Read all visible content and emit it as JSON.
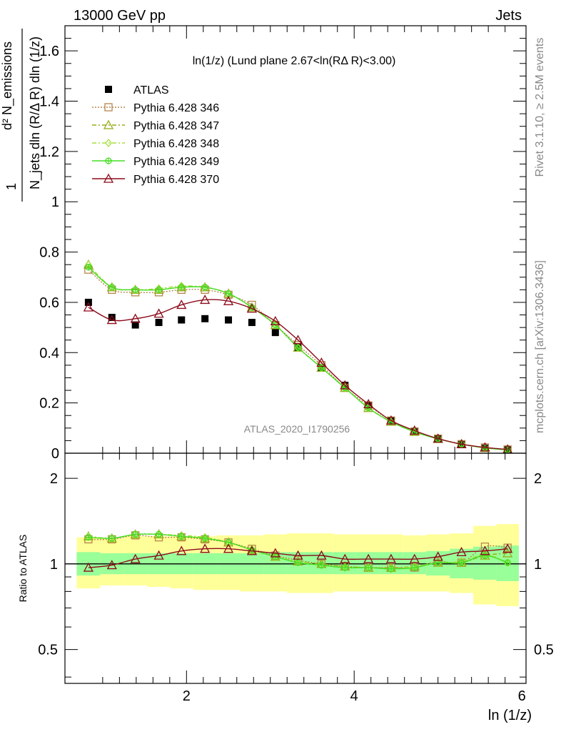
{
  "header": {
    "left": "13000 GeV pp",
    "right": "Jets"
  },
  "side": {
    "rivet": "Rivet 3.1.10, ≥ 2.5M events",
    "mcplots": "mcplots.cern.ch [arXiv:1306.3436]"
  },
  "chart_data": [
    {
      "type": "scatter",
      "title": "ln(1/z) (Lund plane 2.67<ln(RΔ R)<3.00)",
      "ylabel_lines": [
        "1",
        "N_jets dln (R/Δ R) dln (1/z)",
        "d² N_emissions"
      ],
      "xlabel": "ln (1/z)",
      "watermark": "ATLAS_2020_I1790256",
      "xlim": [
        0.55,
        6.05
      ],
      "ylim": [
        0,
        1.7
      ],
      "yticks": [
        0,
        0.2,
        0.4,
        0.6,
        0.8,
        1,
        1.2,
        1.4,
        1.6
      ],
      "ytick_labels": [
        "0",
        "0.2",
        "0.4",
        "0.6",
        "0.8",
        "1",
        "1.2",
        "1.4",
        "1.6"
      ],
      "x": [
        0.83,
        1.11,
        1.39,
        1.67,
        1.94,
        2.22,
        2.5,
        2.78,
        3.06,
        3.33,
        3.61,
        3.89,
        4.17,
        4.44,
        4.72,
        5.0,
        5.28,
        5.56,
        5.83
      ],
      "legend_position": "top-left",
      "series": [
        {
          "name": "ATLAS",
          "color": "#000000",
          "marker": "square-filled",
          "line": "none",
          "values": [
            0.6,
            0.54,
            0.51,
            0.52,
            0.53,
            0.535,
            0.53,
            0.52,
            0.48,
            0.42,
            0.34,
            0.27,
            0.19,
            0.13,
            0.088,
            0.057,
            0.036,
            0.02,
            0.013
          ]
        },
        {
          "name": "Pythia 6.428 346",
          "color": "#b5874a",
          "marker": "square-open",
          "line": "dotted",
          "values": [
            0.73,
            0.65,
            0.64,
            0.64,
            0.65,
            0.65,
            0.63,
            0.59,
            0.51,
            0.43,
            0.35,
            0.26,
            0.19,
            0.13,
            0.086,
            0.058,
            0.036,
            0.023,
            0.015
          ]
        },
        {
          "name": "Pythia 6.428 347",
          "color": "#9aaa18",
          "marker": "triangle-open",
          "line": "dashdot",
          "values": [
            0.75,
            0.66,
            0.65,
            0.65,
            0.66,
            0.66,
            0.635,
            0.58,
            0.51,
            0.42,
            0.34,
            0.26,
            0.18,
            0.125,
            0.085,
            0.057,
            0.036,
            0.021,
            0.014
          ]
        },
        {
          "name": "Pythia 6.428 348",
          "color": "#a6e03c",
          "marker": "diamond-open",
          "line": "dashdot",
          "values": [
            0.75,
            0.66,
            0.65,
            0.655,
            0.665,
            0.66,
            0.635,
            0.58,
            0.51,
            0.42,
            0.34,
            0.26,
            0.18,
            0.125,
            0.085,
            0.057,
            0.036,
            0.022,
            0.013
          ]
        },
        {
          "name": "Pythia 6.428 349",
          "color": "#44dd22",
          "marker": "circle-cross",
          "line": "solid",
          "values": [
            0.74,
            0.66,
            0.65,
            0.65,
            0.66,
            0.66,
            0.635,
            0.58,
            0.51,
            0.42,
            0.34,
            0.26,
            0.18,
            0.125,
            0.085,
            0.057,
            0.036,
            0.021,
            0.013
          ]
        },
        {
          "name": "Pythia 6.428 370",
          "color": "#8b0a1a",
          "marker": "triangle-open",
          "line": "solid",
          "values": [
            0.58,
            0.53,
            0.535,
            0.555,
            0.59,
            0.61,
            0.605,
            0.575,
            0.525,
            0.45,
            0.36,
            0.27,
            0.195,
            0.13,
            0.09,
            0.058,
            0.036,
            0.023,
            0.015
          ]
        }
      ]
    },
    {
      "type": "line",
      "ylabel": "Ratio to ATLAS",
      "xlabel": "ln (1/z)",
      "xlim": [
        0.55,
        6.05
      ],
      "ylim": [
        0.38,
        2.45
      ],
      "yscale": "log",
      "yticks": [
        0.5,
        1,
        2
      ],
      "ytick_labels": [
        "0.5",
        "1",
        "2"
      ],
      "xticks": [
        2,
        4,
        6
      ],
      "xtick_labels": [
        "2",
        "4",
        "6"
      ],
      "x": [
        0.83,
        1.11,
        1.39,
        1.67,
        1.94,
        2.22,
        2.5,
        2.78,
        3.06,
        3.33,
        3.61,
        3.89,
        4.17,
        4.44,
        4.72,
        5.0,
        5.28,
        5.56,
        5.83
      ],
      "bands": [
        {
          "name": "ATLAS total uncertainty",
          "color": "#ffff99",
          "low": [
            0.82,
            0.84,
            0.84,
            0.83,
            0.82,
            0.81,
            0.81,
            0.8,
            0.8,
            0.79,
            0.79,
            0.8,
            0.8,
            0.8,
            0.8,
            0.8,
            0.79,
            0.72,
            0.71
          ],
          "high": [
            1.24,
            1.23,
            1.25,
            1.25,
            1.25,
            1.25,
            1.26,
            1.26,
            1.27,
            1.28,
            1.28,
            1.27,
            1.27,
            1.27,
            1.26,
            1.27,
            1.28,
            1.36,
            1.38
          ]
        },
        {
          "name": "ATLAS statistical uncertainty",
          "color": "#99ff99",
          "low": [
            0.91,
            0.92,
            0.92,
            0.92,
            0.92,
            0.92,
            0.92,
            0.92,
            0.92,
            0.92,
            0.92,
            0.92,
            0.92,
            0.92,
            0.92,
            0.91,
            0.89,
            0.88,
            0.87
          ],
          "high": [
            1.1,
            1.09,
            1.09,
            1.09,
            1.09,
            1.09,
            1.09,
            1.09,
            1.1,
            1.1,
            1.1,
            1.1,
            1.1,
            1.1,
            1.1,
            1.11,
            1.13,
            1.15,
            1.16
          ]
        }
      ],
      "series": [
        {
          "name": "Pythia 6.428 346",
          "color": "#b5874a",
          "marker": "square-open",
          "line": "dotted",
          "values": [
            1.22,
            1.22,
            1.26,
            1.24,
            1.24,
            1.22,
            1.19,
            1.13,
            1.07,
            1.03,
            1.0,
            0.98,
            0.97,
            0.97,
            0.97,
            1.02,
            1.01,
            1.15,
            1.14
          ]
        },
        {
          "name": "Pythia 6.428 347",
          "color": "#9aaa18",
          "marker": "triangle-open",
          "line": "dashdot",
          "values": [
            1.25,
            1.23,
            1.27,
            1.27,
            1.25,
            1.23,
            1.19,
            1.12,
            1.06,
            1.02,
            1.0,
            0.98,
            0.97,
            0.97,
            0.98,
            1.01,
            1.01,
            1.07,
            1.09
          ]
        },
        {
          "name": "Pythia 6.428 348",
          "color": "#a6e03c",
          "marker": "diamond-open",
          "line": "dashdot",
          "values": [
            1.25,
            1.23,
            1.27,
            1.27,
            1.26,
            1.24,
            1.19,
            1.12,
            1.06,
            1.02,
            0.99,
            0.97,
            0.97,
            0.96,
            0.98,
            1.01,
            1.02,
            1.08,
            1.01
          ]
        },
        {
          "name": "Pythia 6.428 349",
          "color": "#44dd22",
          "marker": "circle-cross",
          "line": "solid",
          "values": [
            1.24,
            1.23,
            1.27,
            1.27,
            1.25,
            1.23,
            1.19,
            1.12,
            1.06,
            1.01,
            0.99,
            0.97,
            0.97,
            0.96,
            0.97,
            1.01,
            1.01,
            1.07,
            1.01
          ]
        },
        {
          "name": "Pythia 6.428 370",
          "color": "#8b0a1a",
          "marker": "triangle-open",
          "line": "solid",
          "values": [
            0.97,
            0.99,
            1.04,
            1.07,
            1.11,
            1.13,
            1.13,
            1.11,
            1.09,
            1.07,
            1.07,
            1.04,
            1.04,
            1.04,
            1.04,
            1.06,
            1.1,
            1.11,
            1.13
          ]
        }
      ]
    }
  ]
}
